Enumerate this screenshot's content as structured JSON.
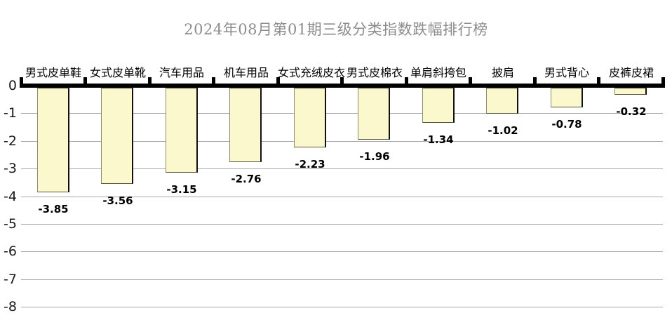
{
  "chart_data": {
    "type": "bar",
    "title": "2024年08月第01期三级分类指数跌幅排行榜",
    "categories": [
      "男式皮单鞋",
      "女式皮单靴",
      "汽车用品",
      "机车用品",
      "女式充绒皮衣",
      "男式皮棉衣",
      "单肩斜挎包",
      "披肩",
      "男式背心",
      "皮裤皮裙"
    ],
    "values": [
      -3.85,
      -3.56,
      -3.15,
      -2.76,
      -2.23,
      -1.96,
      -1.34,
      -1.02,
      -0.78,
      -0.32
    ],
    "value_labels": [
      "-3.85",
      "-3.56",
      "-3.15",
      "-2.76",
      "-2.23",
      "-1.96",
      "-1.34",
      "-1.02",
      "-0.78",
      "-0.32"
    ],
    "xlabel": "",
    "ylabel": "",
    "ylim": [
      -8,
      0
    ],
    "yticks": [
      0,
      -1,
      -2,
      -3,
      -4,
      -5,
      -6,
      -7,
      -8
    ],
    "grid": true,
    "legend_position": "none",
    "category_position": "above-zero-axis",
    "value_label_position": "below-bar-end",
    "colors": {
      "bar_fill": "#fbf8cd",
      "bar_border": "#333322",
      "zero_axis": "#000000",
      "gridline": "#a8a8a8",
      "title_text": "#8c8c8c",
      "label_text": "#000000",
      "background": "#ffffff"
    }
  }
}
